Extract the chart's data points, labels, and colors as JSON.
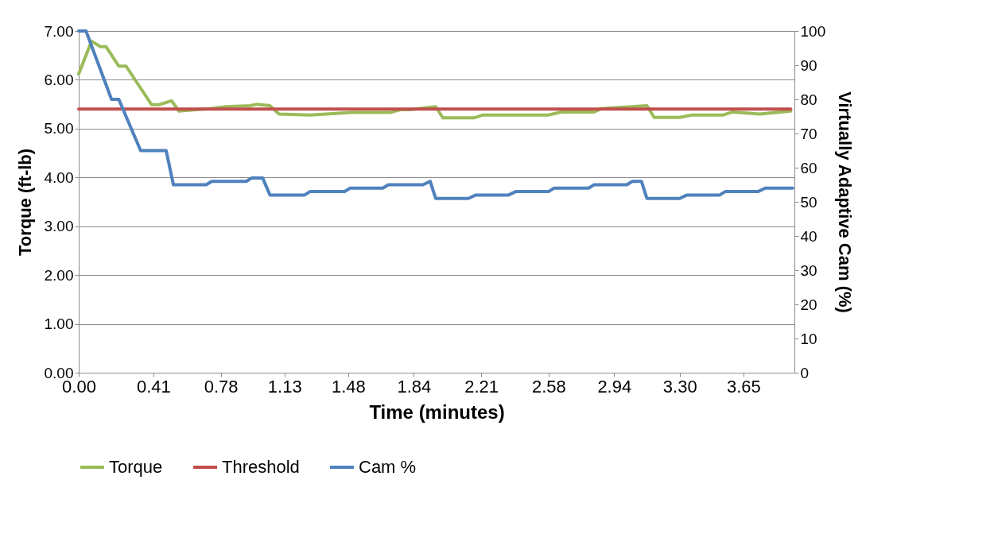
{
  "chart_data": {
    "type": "line",
    "xlabel": "Time (minutes)",
    "ylabel": "Torque (ft-lb)",
    "y2label": "Virtually Adaptive Cam (%)",
    "xlim": [
      0,
      3.93
    ],
    "xticks": [
      {
        "value": 0,
        "label": "0.00"
      },
      {
        "value": 0.41,
        "label": "0.41"
      },
      {
        "value": 0.78,
        "label": "0.78"
      },
      {
        "value": 1.13,
        "label": "1.13"
      },
      {
        "value": 1.48,
        "label": "1.48"
      },
      {
        "value": 1.84,
        "label": "1.84"
      },
      {
        "value": 2.21,
        "label": "2.21"
      },
      {
        "value": 2.58,
        "label": "2.58"
      },
      {
        "value": 2.94,
        "label": "2.94"
      },
      {
        "value": 3.3,
        "label": "3.30"
      },
      {
        "value": 3.65,
        "label": "3.65"
      }
    ],
    "ylim": [
      0,
      7
    ],
    "yticks": [
      {
        "value": 0,
        "label": "0.00"
      },
      {
        "value": 1,
        "label": "1.00"
      },
      {
        "value": 2,
        "label": "2.00"
      },
      {
        "value": 3,
        "label": "3.00"
      },
      {
        "value": 4,
        "label": "4.00"
      },
      {
        "value": 5,
        "label": "5.00"
      },
      {
        "value": 6,
        "label": "6.00"
      },
      {
        "value": 7,
        "label": "7.00"
      }
    ],
    "y2lim": [
      0,
      100
    ],
    "y2ticks": [
      0,
      10,
      20,
      30,
      40,
      50,
      60,
      70,
      80,
      90,
      100
    ],
    "grid": "y",
    "legend": "bottom",
    "line_style": "solid",
    "marker": "none",
    "series": [
      {
        "name": "Torque",
        "color": "#9bbb59",
        "x": [
          0.0,
          0.07,
          0.12,
          0.15,
          0.22,
          0.26,
          0.4,
          0.44,
          0.51,
          0.55,
          0.72,
          0.81,
          0.94,
          0.98,
          1.05,
          1.1,
          1.27,
          1.5,
          1.71,
          1.77,
          1.82,
          1.96,
          2.0,
          2.17,
          2.22,
          2.58,
          2.65,
          2.83,
          2.87,
          3.12,
          3.16,
          3.3,
          3.37,
          3.54,
          3.59,
          3.74,
          3.91
        ],
        "values": [
          6.12,
          6.79,
          6.68,
          6.68,
          6.28,
          6.28,
          5.49,
          5.49,
          5.57,
          5.36,
          5.41,
          5.45,
          5.47,
          5.5,
          5.47,
          5.3,
          5.28,
          5.33,
          5.33,
          5.39,
          5.39,
          5.45,
          5.22,
          5.22,
          5.28,
          5.28,
          5.34,
          5.34,
          5.41,
          5.47,
          5.23,
          5.23,
          5.28,
          5.28,
          5.34,
          5.3,
          5.36
        ]
      },
      {
        "name": "Threshold",
        "color": "#c0504d",
        "x": [
          0.0,
          3.91
        ],
        "values": [
          5.4,
          5.4
        ]
      },
      {
        "name": "Cam %",
        "color": "#4f81bd",
        "axis": "y2",
        "x": [
          0.0,
          0.04,
          0.18,
          0.22,
          0.34,
          0.48,
          0.52,
          0.7,
          0.73,
          0.92,
          0.95,
          1.01,
          1.05,
          1.24,
          1.27,
          1.46,
          1.49,
          1.67,
          1.7,
          1.89,
          1.93,
          1.96,
          2.14,
          2.18,
          2.36,
          2.4,
          2.58,
          2.61,
          2.8,
          2.83,
          3.01,
          3.04,
          3.09,
          3.12,
          3.3,
          3.34,
          3.52,
          3.55,
          3.73,
          3.77,
          3.92
        ],
        "values": [
          100,
          100,
          80,
          80,
          65,
          65,
          55,
          55,
          56,
          56,
          57,
          57,
          52,
          52,
          53,
          53,
          54,
          54,
          55,
          55,
          56,
          51,
          51,
          52,
          52,
          53,
          53,
          54,
          54,
          55,
          55,
          56,
          56,
          51,
          51,
          52,
          52,
          53,
          53,
          54,
          54
        ]
      }
    ]
  }
}
